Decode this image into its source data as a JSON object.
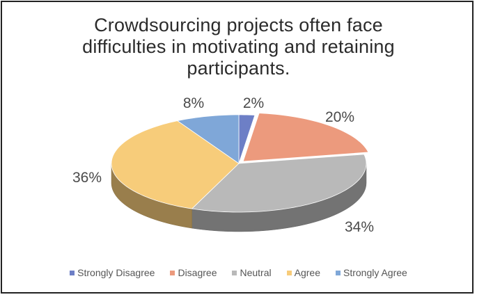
{
  "chart_data": {
    "type": "pie",
    "title": "Crowdsourcing projects often face difficulties in motivating and retaining participants.",
    "title_lines": [
      "Crowdsourcing projects often face",
      "difficulties in motivating and retaining",
      "participants."
    ],
    "legend_position": "bottom",
    "three_d": true,
    "slices": [
      {
        "label": "Strongly Disagree",
        "value": 2,
        "display": "2%",
        "color": "#6d7fc6"
      },
      {
        "label": "Disagree",
        "value": 20,
        "display": "20%",
        "color": "#ec9a7d"
      },
      {
        "label": "Neutral",
        "value": 34,
        "display": "34%",
        "color": "#b9b9b9"
      },
      {
        "label": "Agree",
        "value": 36,
        "display": "36%",
        "color": "#f7cc7a"
      },
      {
        "label": "Strongly Agree",
        "value": 8,
        "display": "8%",
        "color": "#7fa7d8"
      }
    ]
  }
}
